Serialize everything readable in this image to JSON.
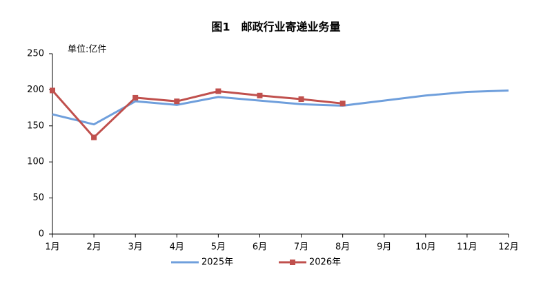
{
  "chart_data": {
    "type": "line",
    "title": "图1　邮政行业寄递业务量",
    "unit_label": "单位:亿件",
    "categories": [
      "1月",
      "2月",
      "3月",
      "4月",
      "5月",
      "6月",
      "7月",
      "8月",
      "9月",
      "10月",
      "11月",
      "12月"
    ],
    "series": [
      {
        "name": "2025年",
        "color": "#6f9fdc",
        "marker": "none",
        "values": [
          166,
          152,
          184,
          179,
          190,
          185,
          180,
          178,
          185,
          192,
          197,
          199
        ]
      },
      {
        "name": "2026年",
        "color": "#c0504d",
        "marker": "square",
        "values": [
          199,
          134,
          189,
          184,
          198,
          192,
          187,
          181,
          null,
          null,
          null,
          null
        ]
      }
    ],
    "ylim": [
      0,
      250
    ],
    "yticks": [
      0,
      50,
      100,
      150,
      200,
      250
    ],
    "grid": false,
    "legend": "bottom"
  }
}
